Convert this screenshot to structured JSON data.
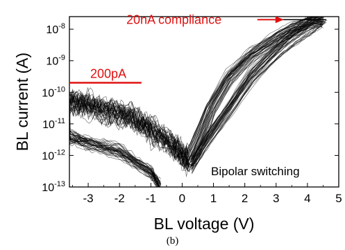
{
  "caption": "(b)",
  "chart_data": {
    "type": "line",
    "title": "",
    "xlabel": "BL voltage (V)",
    "ylabel": "BL current (A)",
    "xlim": [
      -3.6,
      5
    ],
    "ylim": [
      1e-13,
      2.5e-08
    ],
    "yscale": "log",
    "grid": false,
    "x_ticks": [
      -3,
      -2,
      -1,
      0,
      1,
      2,
      3,
      4,
      5
    ],
    "x_tick_labels": [
      "-3",
      "-2",
      "-1",
      "0",
      "1",
      "2",
      "3",
      "4",
      "5"
    ],
    "y_ticks": [
      1e-13,
      1e-12,
      1e-11,
      1e-10,
      1e-09,
      1e-08
    ],
    "y_tick_labels": [
      {
        "base": "10",
        "exp": "-13"
      },
      {
        "base": "10",
        "exp": "-12"
      },
      {
        "base": "10",
        "exp": "-11"
      },
      {
        "base": "10",
        "exp": "-10"
      },
      {
        "base": "10",
        "exp": "-9"
      },
      {
        "base": "10",
        "exp": "-8"
      }
    ],
    "annotations": [
      {
        "text": "20nA compliance",
        "color": "#e01010",
        "points_to": [
          3.2,
          2e-08
        ]
      },
      {
        "text": "200pA",
        "color": "#e01010",
        "level": 2e-10,
        "x_range": [
          -3.6,
          -1.3
        ]
      },
      {
        "text": "Bipolar switching",
        "color": "#000000",
        "position": "bottom-right"
      }
    ],
    "compliance_line": {
      "y": 2e-08,
      "x_range": [
        3.2,
        4.6
      ]
    },
    "series_color": "#000000",
    "curve_count": 40,
    "curve_template": {
      "set_forward": [
        [
          0.3,
          5e-13
        ],
        [
          0.8,
          3e-12
        ],
        [
          1.5,
          3e-11
        ],
        [
          2.2,
          3e-10
        ],
        [
          3.0,
          2e-09
        ],
        [
          3.6,
          6e-09
        ],
        [
          4.0,
          1.2e-08
        ],
        [
          4.3,
          2e-08
        ]
      ],
      "on_return": [
        [
          4.5,
          2e-08
        ],
        [
          4.0,
          1.5e-08
        ],
        [
          3.5,
          1e-08
        ],
        [
          3.0,
          5e-09
        ],
        [
          2.2,
          1.5e-09
        ],
        [
          1.5,
          3e-10
        ],
        [
          0.9,
          3e-11
        ],
        [
          0.5,
          3e-12
        ],
        [
          0.2,
          6e-13
        ]
      ],
      "reset_sweep": [
        [
          0.2,
          6e-13
        ],
        [
          -0.3,
          2e-12
        ],
        [
          -1.0,
          6e-12
        ],
        [
          -1.6,
          1.5e-11
        ],
        [
          -2.3,
          2.5e-11
        ],
        [
          -3.0,
          4e-11
        ],
        [
          -3.6,
          5e-11
        ]
      ],
      "off_return": [
        [
          -3.6,
          4e-12
        ],
        [
          -3.0,
          2.5e-12
        ],
        [
          -2.0,
          1.3e-12
        ],
        [
          -1.0,
          3e-13
        ],
        [
          -0.7,
          1e-13
        ]
      ]
    }
  }
}
